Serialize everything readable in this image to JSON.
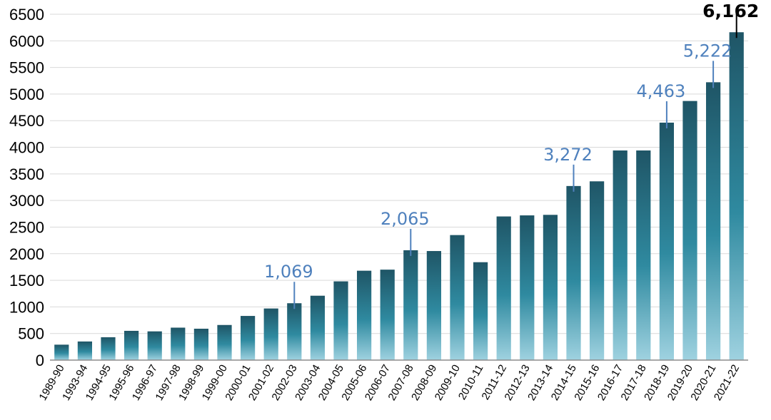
{
  "chart_data": {
    "type": "bar",
    "title": "",
    "xlabel": "",
    "ylabel": "",
    "ylim": [
      0,
      6500
    ],
    "yticks": [
      0,
      500,
      1000,
      1500,
      2000,
      2500,
      3000,
      3500,
      4000,
      4500,
      5000,
      5500,
      6000,
      6500
    ],
    "grid": true,
    "categories": [
      "1989-90",
      "1993-94",
      "1994-95",
      "1995-96",
      "1996-97",
      "1997-98",
      "1998-99",
      "1999-00",
      "2000-01",
      "2001-02",
      "2002-03",
      "2003-04",
      "2004-05",
      "2005-06",
      "2006-07",
      "2007-08",
      "2008-09",
      "2009-10",
      "2010-11",
      "2011-12",
      "2012-13",
      "2013-14",
      "2014-15",
      "2015-16",
      "2016-17",
      "2017-18",
      "2018-19",
      "2019-20",
      "2020-21",
      "2021-22"
    ],
    "values": [
      290,
      350,
      430,
      550,
      540,
      610,
      590,
      660,
      830,
      970,
      1069,
      1210,
      1480,
      1680,
      1700,
      2065,
      2050,
      2350,
      1840,
      2700,
      2720,
      2730,
      3272,
      3360,
      3940,
      3940,
      4463,
      4870,
      5222,
      6162
    ],
    "annotations": [
      {
        "category": "2002-03",
        "label": "1,069",
        "color": "#4f81bd",
        "bold": false
      },
      {
        "category": "2007-08",
        "label": "2,065",
        "color": "#4f81bd",
        "bold": false
      },
      {
        "category": "2014-15",
        "label": "3,272",
        "color": "#4f81bd",
        "bold": false
      },
      {
        "category": "2018-19",
        "label": "4,463",
        "color": "#4f81bd",
        "bold": false
      },
      {
        "category": "2020-21",
        "label": "5,222",
        "color": "#4f81bd",
        "bold": false
      },
      {
        "category": "2021-22",
        "label": "6,162",
        "color": "#000000",
        "bold": true
      }
    ],
    "colors": {
      "bar_top": "#1f5566",
      "bar_mid": "#2f8aa0",
      "bar_bottom": "#9fd2e0",
      "gridline": "#d9d9d9",
      "axis": "#8c8c8c"
    }
  }
}
